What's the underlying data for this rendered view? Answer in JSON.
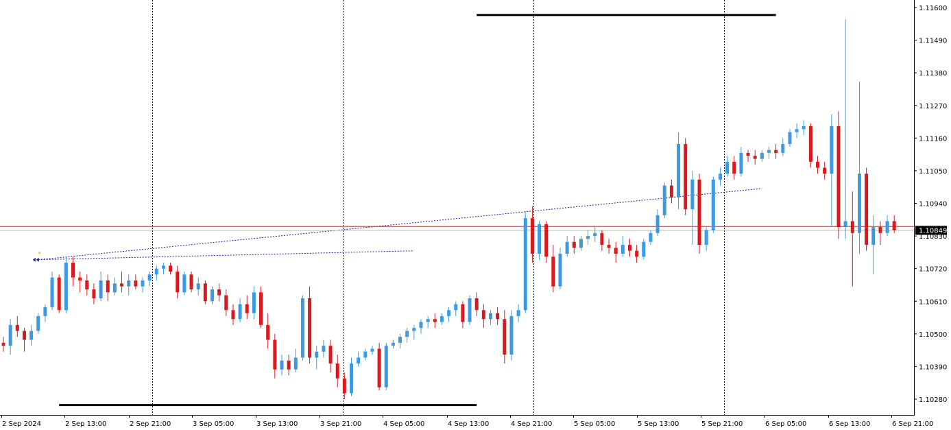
{
  "chart_data": {
    "type": "candlestick",
    "title": "",
    "xlabel": "",
    "ylabel": "",
    "ylim": [
      1.1021,
      1.1168
    ],
    "y_ticks": [
      "1.11600",
      "1.11490",
      "1.11380",
      "1.11270",
      "1.11160",
      "1.11050",
      "1.10940",
      "1.10830",
      "1.10720",
      "1.10610",
      "1.10500",
      "1.10390",
      "1.10280"
    ],
    "x_ticks": [
      "2 Sep 2024",
      "2 Sep 13:00",
      "2 Sep 21:00",
      "3 Sep 05:00",
      "3 Sep 13:00",
      "3 Sep 21:00",
      "4 Sep 05:00",
      "4 Sep 13:00",
      "4 Sep 21:00",
      "5 Sep 05:00",
      "5 Sep 13:00",
      "5 Sep 21:00",
      "6 Sep 05:00",
      "6 Sep 13:00",
      "6 Sep 21:00"
    ],
    "current_price": "1.10849",
    "current_price_value": 1.10849,
    "reference_line_value": 1.10862,
    "colors": {
      "bull": "#3d9ae0",
      "bear": "#d9191e",
      "grid": "#000000",
      "trendline": "#1a1aa8",
      "price_line": "#c0392b",
      "level_line": "#000000"
    },
    "horizontal_levels": [
      {
        "value": 1.11575,
        "from_time": "4 Sep 23:00",
        "to_time": "6 Sep 18:00"
      },
      {
        "value": 1.1026,
        "from_time": "2 Sep 11:00",
        "to_time": "4 Sep 23:00"
      }
    ],
    "trendlines": [
      {
        "from": {
          "time": "2 Sep 08:00",
          "price": 1.1075
        },
        "to": {
          "time": "6 Sep 16:00",
          "price": 1.1099
        }
      },
      {
        "from": {
          "time": "2 Sep 08:00",
          "price": 1.1075
        },
        "to": {
          "time": "4 Sep 14:00",
          "price": 1.1078
        }
      }
    ],
    "series": [
      {
        "values": [
          [
            1.1047,
            1.1049,
            1.1044,
            1.1046
          ],
          [
            1.1046,
            1.1055,
            1.1043,
            1.1053
          ],
          [
            1.1053,
            1.1056,
            1.1049,
            1.1051
          ],
          [
            1.1051,
            1.1052,
            1.1044,
            1.1048
          ],
          [
            1.1048,
            1.1053,
            1.1046,
            1.1051
          ],
          [
            1.1051,
            1.1057,
            1.105,
            1.1056
          ],
          [
            1.1056,
            1.106,
            1.1054,
            1.1059
          ],
          [
            1.1059,
            1.1071,
            1.1058,
            1.1069
          ],
          [
            1.1069,
            1.107,
            1.1057,
            1.1058
          ],
          [
            1.1058,
            1.1076,
            1.1057,
            1.1074
          ],
          [
            1.1074,
            1.1076,
            1.1066,
            1.1069
          ],
          [
            1.1069,
            1.1071,
            1.1064,
            1.1068
          ],
          [
            1.1068,
            1.107,
            1.1063,
            1.1065
          ],
          [
            1.1065,
            1.1067,
            1.106,
            1.1062
          ],
          [
            1.1062,
            1.1071,
            1.1061,
            1.1068
          ],
          [
            1.1068,
            1.107,
            1.1061,
            1.1064
          ],
          [
            1.1064,
            1.1069,
            1.1063,
            1.1067
          ],
          [
            1.1067,
            1.1071,
            1.1064,
            1.1066
          ],
          [
            1.1066,
            1.107,
            1.1063,
            1.1068
          ],
          [
            1.1068,
            1.107,
            1.1065,
            1.1066
          ],
          [
            1.1066,
            1.1069,
            1.1064,
            1.1068
          ],
          [
            1.1068,
            1.1071,
            1.1066,
            1.107
          ],
          [
            1.107,
            1.1073,
            1.1068,
            1.1072
          ],
          [
            1.1072,
            1.1074,
            1.107,
            1.1073
          ],
          [
            1.1073,
            1.1074,
            1.107,
            1.1071
          ],
          [
            1.1071,
            1.1073,
            1.1062,
            1.1064
          ],
          [
            1.1064,
            1.1071,
            1.1063,
            1.107
          ],
          [
            1.107,
            1.1071,
            1.1064,
            1.1065
          ],
          [
            1.1065,
            1.1069,
            1.1063,
            1.1067
          ],
          [
            1.1067,
            1.1068,
            1.106,
            1.1061
          ],
          [
            1.1061,
            1.1066,
            1.106,
            1.1065
          ],
          [
            1.1065,
            1.1067,
            1.1061,
            1.1063
          ],
          [
            1.1063,
            1.1065,
            1.1056,
            1.1058
          ],
          [
            1.1058,
            1.106,
            1.1053,
            1.1055
          ],
          [
            1.1055,
            1.1062,
            1.1054,
            1.106
          ],
          [
            1.106,
            1.1063,
            1.1055,
            1.1057
          ],
          [
            1.1057,
            1.1066,
            1.1055,
            1.1064
          ],
          [
            1.1064,
            1.1066,
            1.1052,
            1.1053
          ],
          [
            1.1053,
            1.1057,
            1.1045,
            1.1048
          ],
          [
            1.1048,
            1.105,
            1.1035,
            1.1038
          ],
          [
            1.1038,
            1.1043,
            1.1036,
            1.1041
          ],
          [
            1.1041,
            1.1043,
            1.1036,
            1.1038
          ],
          [
            1.1038,
            1.1045,
            1.1037,
            1.1042
          ],
          [
            1.1042,
            1.1063,
            1.1041,
            1.1062
          ],
          [
            1.1062,
            1.1066,
            1.104,
            1.1042
          ],
          [
            1.1042,
            1.1046,
            1.1038,
            1.1044
          ],
          [
            1.1044,
            1.1048,
            1.1042,
            1.1046
          ],
          [
            1.1046,
            1.1048,
            1.1037,
            1.104
          ],
          [
            1.104,
            1.1043,
            1.1032,
            1.1035
          ],
          [
            1.1035,
            1.1037,
            1.1028,
            1.103
          ],
          [
            1.103,
            1.1042,
            1.1029,
            1.104
          ],
          [
            1.104,
            1.1044,
            1.1039,
            1.1042
          ],
          [
            1.1042,
            1.1045,
            1.1041,
            1.1044
          ],
          [
            1.1044,
            1.1046,
            1.1043,
            1.1045
          ],
          [
            1.1045,
            1.1047,
            1.1031,
            1.1032
          ],
          [
            1.1032,
            1.1047,
            1.1031,
            1.1046
          ],
          [
            1.1046,
            1.1048,
            1.1045,
            1.1047
          ],
          [
            1.1047,
            1.105,
            1.1045,
            1.1049
          ],
          [
            1.1049,
            1.1052,
            1.1047,
            1.1051
          ],
          [
            1.1051,
            1.1053,
            1.1048,
            1.1052
          ],
          [
            1.1052,
            1.1055,
            1.105,
            1.1054
          ],
          [
            1.1054,
            1.1056,
            1.1052,
            1.1055
          ],
          [
            1.1055,
            1.1057,
            1.1052,
            1.1054
          ],
          [
            1.1054,
            1.1057,
            1.1053,
            1.1056
          ],
          [
            1.1056,
            1.1059,
            1.1054,
            1.1058
          ],
          [
            1.1058,
            1.1061,
            1.1056,
            1.106
          ],
          [
            1.106,
            1.1061,
            1.1052,
            1.1054
          ],
          [
            1.1054,
            1.1063,
            1.1053,
            1.1062
          ],
          [
            1.1062,
            1.1064,
            1.1056,
            1.1058
          ],
          [
            1.1058,
            1.106,
            1.1052,
            1.1055
          ],
          [
            1.1055,
            1.1058,
            1.1053,
            1.1057
          ],
          [
            1.1057,
            1.1059,
            1.1053,
            1.1055
          ],
          [
            1.1055,
            1.1058,
            1.104,
            1.1043
          ],
          [
            1.1043,
            1.1058,
            1.1041,
            1.1056
          ],
          [
            1.1056,
            1.106,
            1.1054,
            1.1058
          ],
          [
            1.1058,
            1.1091,
            1.1057,
            1.1089
          ],
          [
            1.1089,
            1.1093,
            1.1074,
            1.1077
          ],
          [
            1.1077,
            1.1088,
            1.1075,
            1.1087
          ],
          [
            1.1087,
            1.1088,
            1.1074,
            1.1076
          ],
          [
            1.1076,
            1.108,
            1.1064,
            1.1066
          ],
          [
            1.1066,
            1.1079,
            1.1065,
            1.1077
          ],
          [
            1.1077,
            1.1083,
            1.1076,
            1.1081
          ],
          [
            1.1081,
            1.1083,
            1.1077,
            1.1079
          ],
          [
            1.1079,
            1.1083,
            1.1078,
            1.1082
          ],
          [
            1.1082,
            1.1085,
            1.108,
            1.1083
          ],
          [
            1.1083,
            1.1086,
            1.1081,
            1.1084
          ],
          [
            1.1084,
            1.1085,
            1.1078,
            1.108
          ],
          [
            1.108,
            1.1082,
            1.1077,
            1.1079
          ],
          [
            1.1079,
            1.1081,
            1.1074,
            1.1077
          ],
          [
            1.1077,
            1.1083,
            1.1076,
            1.108
          ],
          [
            1.108,
            1.1082,
            1.1076,
            1.1078
          ],
          [
            1.1078,
            1.108,
            1.1074,
            1.1076
          ],
          [
            1.1076,
            1.1082,
            1.1075,
            1.1081
          ],
          [
            1.1081,
            1.1085,
            1.108,
            1.1084
          ],
          [
            1.1084,
            1.1092,
            1.1083,
            1.109
          ],
          [
            1.109,
            1.1101,
            1.1089,
            1.11
          ],
          [
            1.11,
            1.1102,
            1.1094,
            1.1096
          ],
          [
            1.1096,
            1.1118,
            1.1092,
            1.1114
          ],
          [
            1.1114,
            1.1116,
            1.109,
            1.1092
          ],
          [
            1.1092,
            1.1105,
            1.108,
            1.1102
          ],
          [
            1.1102,
            1.1104,
            1.1077,
            1.108
          ],
          [
            1.108,
            1.1086,
            1.1078,
            1.1085
          ],
          [
            1.1085,
            1.1103,
            1.1084,
            1.1102
          ],
          [
            1.1102,
            1.1106,
            1.11,
            1.1104
          ],
          [
            1.1104,
            1.111,
            1.1103,
            1.1108
          ],
          [
            1.1108,
            1.111,
            1.1102,
            1.1104
          ],
          [
            1.1104,
            1.1113,
            1.1103,
            1.1111
          ],
          [
            1.1111,
            1.1112,
            1.1108,
            1.111
          ],
          [
            1.111,
            1.1112,
            1.1107,
            1.1109
          ],
          [
            1.1109,
            1.1112,
            1.1108,
            1.1111
          ],
          [
            1.1111,
            1.1113,
            1.1109,
            1.1112
          ],
          [
            1.1112,
            1.1114,
            1.1109,
            1.1111
          ],
          [
            1.1111,
            1.1116,
            1.111,
            1.1114
          ],
          [
            1.1114,
            1.1119,
            1.1113,
            1.1118
          ],
          [
            1.1118,
            1.1121,
            1.1116,
            1.1119
          ],
          [
            1.1119,
            1.1122,
            1.1117,
            1.112
          ],
          [
            1.112,
            1.1121,
            1.1106,
            1.1108
          ],
          [
            1.1108,
            1.111,
            1.1104,
            1.1106
          ],
          [
            1.1106,
            1.1108,
            1.1102,
            1.1104
          ],
          [
            1.1104,
            1.1124,
            1.1086,
            1.112
          ],
          [
            1.112,
            1.1125,
            1.1082,
            1.1086
          ],
          [
            1.1086,
            1.1156,
            1.1082,
            1.1088
          ],
          [
            1.1088,
            1.1098,
            1.1066,
            1.1084
          ],
          [
            1.1084,
            1.1135,
            1.1077,
            1.1104
          ],
          [
            1.1104,
            1.1106,
            1.1078,
            1.108
          ],
          [
            1.108,
            1.109,
            1.107,
            1.1086
          ],
          [
            1.1086,
            1.1088,
            1.108,
            1.1084
          ],
          [
            1.1084,
            1.109,
            1.1083,
            1.1088
          ],
          [
            1.1088,
            1.109,
            1.1084,
            1.1085
          ]
        ]
      }
    ]
  }
}
